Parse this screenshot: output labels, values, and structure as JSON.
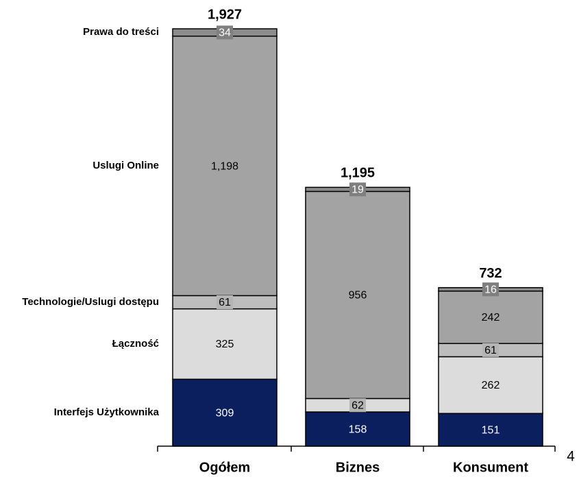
{
  "chart_data": {
    "type": "stacked_bar",
    "categories": [
      "Ogółem",
      "Biznes",
      "Konsument"
    ],
    "series": [
      {
        "name": "Interfejs Użytkownika",
        "color": "#0b1f5e",
        "values": [
          309,
          158,
          151
        ]
      },
      {
        "name": "Łączność",
        "color": "#dcdcdc",
        "values": [
          325,
          62,
          262
        ]
      },
      {
        "name": "Technologie/Uslugi dostępu",
        "color": "#bdbdbd",
        "values": [
          61,
          null,
          61
        ]
      },
      {
        "name": "Uslugi Online",
        "color": "#a3a3a3",
        "values": [
          1198,
          956,
          242
        ],
        "value_labels": [
          "1,198",
          "956",
          "242"
        ]
      },
      {
        "name": "Prawa do treści",
        "color": "#8c8c8c",
        "values": [
          34,
          19,
          16
        ]
      }
    ],
    "totals": [
      1927,
      1195,
      732
    ],
    "total_labels": [
      "1,927",
      "1,195",
      "732"
    ],
    "page_number": "4"
  }
}
